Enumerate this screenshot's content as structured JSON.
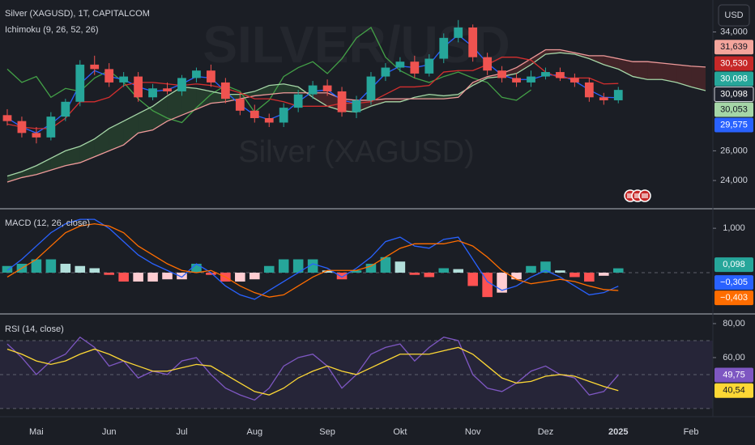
{
  "chart_data": [
    {
      "type": "candlestick",
      "title": "Silver (XAGUSD), 1T, CAPITALCOM",
      "subtitle": "Ichimoku (9, 26, 52, 26)",
      "watermark": "SILVER/USD",
      "watermark_sub": "Silver (XAGUSD)",
      "currency": "USD",
      "categories": [
        null,
        null,
        "Mai",
        null,
        null,
        null,
        null,
        "Jun",
        null,
        null,
        null,
        null,
        "Jul",
        null,
        null,
        null,
        null,
        "Aug",
        null,
        null,
        null,
        null,
        "Sep",
        null,
        null,
        null,
        null,
        "Okt",
        null,
        null,
        null,
        null,
        "Nov",
        null,
        null,
        null,
        null,
        "Dez",
        null,
        null,
        null,
        null,
        "2025",
        null,
        null,
        null,
        null,
        "Feb",
        null
      ],
      "open": [
        28.4,
        28.0,
        27.2,
        26.9,
        28.3,
        29.3,
        31.8,
        31.5,
        30.6,
        31.0,
        29.6,
        30.2,
        30.0,
        30.9,
        31.4,
        30.6,
        29.5,
        28.7,
        28.2,
        27.9,
        28.9,
        29.8,
        30.4,
        30.0,
        28.6,
        29.4,
        31.0,
        31.6,
        32.0,
        31.2,
        32.2,
        33.6,
        34.3,
        32.3,
        31.4,
        30.9,
        30.6,
        31.0,
        31.3,
        30.9,
        30.6,
        29.6,
        29.4,
        null,
        null,
        null,
        null,
        null,
        null
      ],
      "high": [
        28.8,
        28.3,
        27.6,
        28.6,
        29.5,
        32.1,
        32.4,
        31.9,
        31.3,
        31.3,
        30.5,
        30.6,
        31.1,
        31.6,
        31.8,
        30.9,
        29.9,
        29.1,
        28.5,
        29.2,
        30.1,
        30.7,
        30.8,
        30.3,
        29.7,
        31.3,
        31.9,
        32.3,
        32.4,
        32.5,
        33.9,
        34.8,
        34.5,
        32.6,
        31.7,
        31.2,
        31.4,
        31.6,
        31.6,
        31.2,
        30.9,
        29.9,
        30.3,
        null,
        null,
        null,
        null,
        null,
        null
      ],
      "low": [
        27.7,
        26.9,
        26.5,
        26.7,
        28.0,
        29.0,
        31.1,
        30.3,
        30.3,
        29.3,
        29.4,
        29.8,
        29.7,
        30.6,
        30.3,
        29.2,
        28.4,
        27.9,
        27.6,
        27.6,
        28.6,
        29.5,
        29.7,
        28.3,
        28.2,
        29.1,
        30.7,
        31.3,
        30.9,
        31.0,
        31.9,
        33.3,
        32.0,
        31.1,
        30.6,
        30.3,
        30.3,
        30.8,
        30.7,
        30.3,
        29.3,
        29.1,
        29.2,
        null,
        null,
        null,
        null,
        null,
        null
      ],
      "close": [
        28.0,
        27.2,
        26.9,
        28.3,
        29.3,
        31.8,
        31.5,
        30.6,
        31.0,
        29.6,
        30.2,
        30.0,
        30.9,
        31.4,
        30.6,
        29.5,
        28.7,
        28.2,
        27.9,
        28.9,
        29.8,
        30.4,
        30.0,
        28.6,
        29.4,
        31.0,
        31.6,
        32.0,
        31.2,
        32.2,
        33.6,
        34.3,
        32.3,
        31.4,
        30.9,
        30.6,
        31.0,
        31.3,
        30.9,
        30.6,
        29.6,
        29.4,
        30.098,
        null,
        null,
        null,
        null,
        null,
        null
      ],
      "up_color": "#26a69a",
      "down_color": "#ef5350",
      "series": [
        {
          "color": "#43a047",
          "values": [
            31.5,
            30.6,
            31.0,
            29.6,
            30.2,
            30.0,
            30.9,
            31.4,
            30.6,
            29.5,
            28.7,
            28.2,
            27.9,
            28.9,
            29.8,
            30.4,
            30.0,
            28.6,
            29.4,
            31.0,
            31.6,
            32.0,
            31.2,
            32.2,
            33.6,
            34.3,
            32.3,
            31.4,
            30.9,
            30.6,
            31.0,
            31.3,
            30.9,
            30.6,
            29.6,
            29.4,
            30.098,
            null,
            null,
            null,
            null,
            null,
            null,
            null,
            null,
            null,
            null,
            null,
            null
          ]
        },
        {
          "color": "#a5d6a7",
          "values": [
            24.3,
            24.6,
            25.0,
            25.5,
            26.0,
            26.3,
            26.8,
            27.5,
            28.0,
            28.5,
            29.0,
            29.7,
            30.3,
            30.2,
            30.0,
            29.8,
            29.8,
            30.0,
            30.4,
            30.5,
            30.3,
            29.6,
            29.0,
            28.7,
            28.6,
            29.0,
            29.3,
            29.3,
            29.6,
            29.8,
            29.7,
            29.8,
            30.4,
            30.9,
            31.0,
            31.2,
            31.8,
            32.5,
            32.6,
            32.5,
            32.2,
            31.8,
            31.5,
            31.0,
            30.8,
            30.8,
            30.6,
            30.3,
            30.053
          ]
        },
        {
          "color": "#ef9a9a",
          "values": [
            23.9,
            24.2,
            24.4,
            24.7,
            25.0,
            25.2,
            25.6,
            26.0,
            26.4,
            27.2,
            27.4,
            28.0,
            28.4,
            28.8,
            29.2,
            29.3,
            29.5,
            29.7,
            29.8,
            29.9,
            29.9,
            29.9,
            29.9,
            29.5,
            29.4,
            29.4,
            29.5,
            29.5,
            29.5,
            29.5,
            29.5,
            29.6,
            30.6,
            31.0,
            31.2,
            31.6,
            32.2,
            32.8,
            32.8,
            32.6,
            32.4,
            32.4,
            32.2,
            32.0,
            32.0,
            31.9,
            31.8,
            31.7,
            31.639
          ]
        },
        {
          "color": "#2962ff",
          "values": [
            28.2,
            27.6,
            27.2,
            27.8,
            28.6,
            30.5,
            31.4,
            31.0,
            30.8,
            30.3,
            30.0,
            30.1,
            30.5,
            31.0,
            30.9,
            30.0,
            29.1,
            28.4,
            28.1,
            28.5,
            29.3,
            30.0,
            30.1,
            29.4,
            29.2,
            30.2,
            31.2,
            31.7,
            31.6,
            31.8,
            33.0,
            33.8,
            33.0,
            31.9,
            31.1,
            30.8,
            30.8,
            31.1,
            31.1,
            30.7,
            30.1,
            29.6,
            29.575,
            null,
            null,
            null,
            null,
            null,
            null
          ]
        },
        {
          "color": "#d32f2f",
          "values": [
            27.8,
            27.6,
            27.5,
            27.5,
            28.2,
            29.3,
            29.3,
            29.6,
            30.4,
            30.6,
            30.6,
            30.5,
            30.4,
            30.5,
            30.4,
            30.2,
            29.9,
            29.5,
            29.5,
            29.3,
            29.0,
            29.0,
            29.0,
            29.2,
            29.2,
            29.3,
            29.8,
            30.3,
            30.3,
            30.4,
            31.3,
            31.4,
            31.4,
            31.8,
            32.3,
            32.3,
            32.1,
            31.3,
            30.9,
            30.9,
            30.9,
            30.5,
            30.53,
            null,
            null,
            null,
            null,
            null,
            null
          ]
        }
      ],
      "cloud_colors": [
        "rgba(67,160,71,0.22)",
        "rgba(244,67,54,0.18)"
      ],
      "ylim": [
        22.1,
        36.15
      ],
      "yticks": [
        {
          "value": 24,
          "label": "24,000"
        },
        {
          "value": 26,
          "label": "26,000"
        },
        {
          "value": 34,
          "label": "34,000"
        }
      ],
      "last_labels": [
        {
          "value": 31.639,
          "label": "31,639",
          "color": "#f4a59c",
          "text_color": "#131722"
        },
        {
          "value": 30.53,
          "label": "30,530",
          "color": "#c62828",
          "text_color": "#ffffff"
        },
        {
          "value": 30.098,
          "label": "30,098",
          "color": "#26a69a",
          "text_color": "#ffffff"
        },
        {
          "value": 30.098,
          "label": "30,098",
          "color": "#1e222d",
          "text_color": "#ffffff"
        },
        {
          "value": 30.053,
          "label": "30,053",
          "color": "#a5d6a7",
          "text_color": "#131722"
        },
        {
          "value": 29.575,
          "label": "29,575",
          "color": "#2962ff",
          "text_color": "#ffffff"
        }
      ]
    },
    {
      "type": "macd",
      "title": "MACD (12, 26, close)",
      "series": [
        {
          "color": "#2962ff",
          "values": [
            0.05,
            0.3,
            0.6,
            0.9,
            1.1,
            1.2,
            1.2,
            1.0,
            0.7,
            0.4,
            0.2,
            0.05,
            -0.1,
            0.2,
            0.0,
            -0.3,
            -0.5,
            -0.6,
            -0.4,
            -0.2,
            0.0,
            0.2,
            0.1,
            -0.1,
            0.1,
            0.35,
            0.7,
            0.8,
            0.6,
            0.55,
            0.75,
            0.8,
            0.3,
            -0.2,
            -0.4,
            -0.3,
            -0.1,
            0.05,
            -0.1,
            -0.3,
            -0.5,
            -0.45,
            -0.305,
            null,
            null,
            null,
            null,
            null,
            null
          ]
        },
        {
          "color": "#ff6d00",
          "values": [
            -0.1,
            0.1,
            0.3,
            0.6,
            0.9,
            1.05,
            1.1,
            1.05,
            0.9,
            0.6,
            0.4,
            0.2,
            0.05,
            0.0,
            0.05,
            -0.1,
            -0.3,
            -0.45,
            -0.55,
            -0.5,
            -0.3,
            -0.1,
            0.05,
            0.05,
            0.05,
            0.15,
            0.35,
            0.55,
            0.65,
            0.65,
            0.65,
            0.72,
            0.6,
            0.35,
            0.05,
            -0.15,
            -0.25,
            -0.2,
            -0.15,
            -0.2,
            -0.3,
            -0.38,
            -0.403,
            null,
            null,
            null,
            null,
            null,
            null
          ]
        }
      ],
      "histogram": {
        "values": [
          0.15,
          0.2,
          0.3,
          0.3,
          0.2,
          0.15,
          0.1,
          -0.05,
          -0.2,
          -0.2,
          -0.2,
          -0.15,
          -0.15,
          0.2,
          -0.05,
          -0.2,
          -0.2,
          -0.15,
          0.15,
          0.3,
          0.3,
          0.3,
          0.05,
          -0.15,
          0.05,
          0.2,
          0.35,
          0.25,
          -0.05,
          -0.1,
          0.1,
          0.08,
          -0.3,
          -0.55,
          -0.45,
          -0.15,
          0.15,
          0.25,
          0.05,
          -0.1,
          -0.2,
          -0.07,
          0.098,
          null,
          null,
          null,
          null,
          null,
          null
        ],
        "colors": [
          "#26a69a",
          "#b2dfdb",
          "#ff5252",
          "#ffcdd2"
        ]
      },
      "levels": [
        0
      ],
      "ylim": [
        -0.93,
        1.44
      ],
      "yticks": [
        {
          "value": 1,
          "label": "1,000"
        }
      ],
      "last_labels": [
        {
          "value": 0.098,
          "label": "0,098",
          "color": "#26a69a",
          "text_color": "#ffffff"
        },
        {
          "value": -0.305,
          "label": "−0,305",
          "color": "#2962ff",
          "text_color": "#ffffff"
        },
        {
          "value": -0.403,
          "label": "−0,403",
          "color": "#ff6d00",
          "text_color": "#ffffff"
        }
      ]
    },
    {
      "type": "line",
      "title": "RSI (14, close)",
      "series": [
        {
          "color": "#7e57c2",
          "values": [
            68,
            60,
            50,
            58,
            62,
            72,
            66,
            55,
            58,
            48,
            52,
            50,
            58,
            60,
            50,
            42,
            38,
            35,
            42,
            55,
            60,
            62,
            55,
            42,
            50,
            62,
            66,
            68,
            58,
            66,
            72,
            70,
            50,
            42,
            40,
            45,
            52,
            55,
            50,
            48,
            38,
            40,
            49.75,
            null,
            null,
            null,
            null,
            null,
            null
          ]
        },
        {
          "color": "#fdd835",
          "values": [
            65,
            62,
            58,
            56,
            58,
            62,
            65,
            62,
            58,
            55,
            52,
            52,
            54,
            56,
            55,
            50,
            45,
            40,
            38,
            42,
            48,
            52,
            55,
            52,
            50,
            54,
            58,
            62,
            62,
            62,
            64,
            66,
            62,
            55,
            48,
            45,
            46,
            49,
            50,
            49,
            46,
            43,
            40.54,
            null,
            null,
            null,
            null,
            null,
            null
          ]
        }
      ],
      "levels": [
        70,
        50,
        30
      ],
      "band_color": "rgba(126,87,194,0.12)",
      "ylim": [
        25.2,
        85.7
      ],
      "yticks": [
        {
          "value": 60,
          "label": "60,00"
        },
        {
          "value": 80,
          "label": "80,00"
        }
      ],
      "last_labels": [
        {
          "value": 49.75,
          "label": "49,75",
          "color": "#7e57c2",
          "text_color": "#ffffff"
        },
        {
          "value": 40.54,
          "label": "40,54",
          "color": "#fdd835",
          "text_color": "#131722"
        }
      ]
    }
  ]
}
